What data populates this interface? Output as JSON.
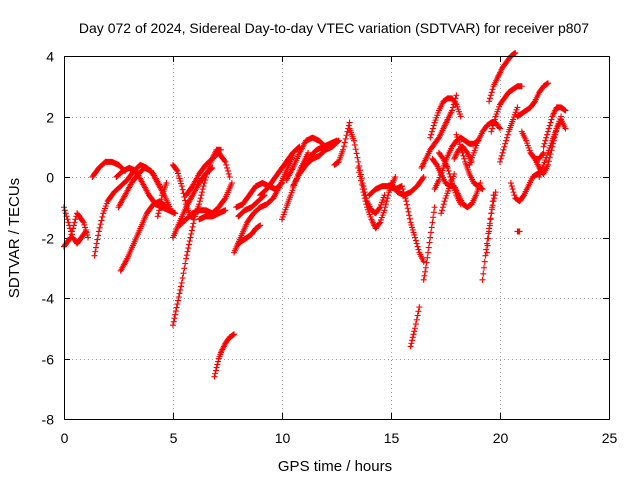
{
  "chart_data": {
    "type": "scatter",
    "title": "Day 072 of 2024, Sidereal Day-to-day VTEC variation (SDTVAR) for receiver p807",
    "xlabel": "GPS time / hours",
    "ylabel": "SDTVAR / TECUs",
    "xlim": [
      0,
      25
    ],
    "ylim": [
      -8,
      4
    ],
    "xticks": [
      "0",
      "5",
      "10",
      "15",
      "20",
      "25"
    ],
    "yticks": [
      "-8",
      "-6",
      "-4",
      "-2",
      "0",
      "2",
      "4"
    ],
    "grid": true,
    "marker": "+",
    "color": "#ff0000",
    "series": [
      {
        "name": "s01",
        "x": [
          0.0,
          0.2,
          0.4,
          0.6,
          0.8,
          1.0
        ],
        "y": [
          -1.0,
          -1.5,
          -2.0,
          -2.2,
          -2.0,
          -1.8
        ]
      },
      {
        "name": "s02",
        "x": [
          0.0,
          0.3,
          0.6,
          0.9,
          1.1
        ],
        "y": [
          -2.3,
          -2.0,
          -1.2,
          -1.5,
          -2.0
        ]
      },
      {
        "name": "s03",
        "x": [
          1.3,
          1.6,
          1.9,
          2.2,
          2.5,
          2.8
        ],
        "y": [
          0.0,
          0.3,
          0.5,
          0.5,
          0.4,
          0.2
        ]
      },
      {
        "name": "s04",
        "x": [
          1.4,
          1.6,
          1.8,
          2.0,
          2.3,
          2.6,
          2.9,
          3.2,
          3.5,
          3.8,
          4.1,
          4.4
        ],
        "y": [
          -2.6,
          -1.8,
          -1.2,
          -0.8,
          -0.5,
          -0.3,
          -0.1,
          0.2,
          0.4,
          0.3,
          0.1,
          -0.3
        ]
      },
      {
        "name": "s05",
        "x": [
          2.5,
          2.8,
          3.1,
          3.4,
          3.7,
          4.0,
          4.3,
          4.6,
          4.9
        ],
        "y": [
          -1.0,
          -0.6,
          -0.2,
          0.1,
          0.3,
          0.2,
          -0.2,
          -0.6,
          -1.1
        ]
      },
      {
        "name": "s06",
        "x": [
          2.6,
          2.9,
          3.2,
          3.5,
          3.8,
          4.1,
          4.4,
          4.7
        ],
        "y": [
          -3.1,
          -2.7,
          -2.2,
          -1.7,
          -1.2,
          -0.9,
          -0.8,
          -1.0
        ]
      },
      {
        "name": "s07",
        "x": [
          2.4,
          2.7,
          3.0,
          3.3,
          3.6,
          3.9,
          4.2,
          4.5,
          4.8,
          5.1
        ],
        "y": [
          0.0,
          0.2,
          0.3,
          0.2,
          -0.2,
          -0.6,
          -0.9,
          -1.0,
          -1.1,
          -1.2
        ]
      },
      {
        "name": "s08",
        "x": [
          4.3,
          4.4,
          4.5,
          4.7
        ],
        "y": [
          -1.3,
          -1.0,
          -0.6,
          -0.2
        ]
      },
      {
        "name": "s09",
        "x": [
          5.0,
          5.2,
          5.4,
          5.6,
          5.8,
          6.0,
          6.2,
          6.4,
          6.6,
          6.8,
          7.0,
          7.2
        ],
        "y": [
          0.4,
          0.2,
          -0.3,
          -0.9,
          -1.3,
          -1.3,
          -0.9,
          -0.3,
          0.2,
          0.6,
          0.9,
          0.9
        ]
      },
      {
        "name": "s10",
        "x": [
          5.0,
          5.2,
          5.4,
          5.6,
          5.8,
          6.0
        ],
        "y": [
          -4.9,
          -4.2,
          -3.5,
          -2.7,
          -2.0,
          -1.3
        ]
      },
      {
        "name": "s11",
        "x": [
          5.6,
          5.9,
          6.2,
          6.5,
          6.8,
          7.1,
          7.4,
          7.6
        ],
        "y": [
          -0.6,
          -0.3,
          0.1,
          0.4,
          0.6,
          0.8,
          0.5,
          0.0
        ]
      },
      {
        "name": "s12",
        "x": [
          5.3,
          5.6,
          5.9,
          6.2,
          6.5,
          6.8,
          7.1,
          7.4,
          7.7
        ],
        "y": [
          -1.6,
          -1.4,
          -1.2,
          -1.1,
          -1.1,
          -1.2,
          -1.0,
          -0.7,
          -0.2
        ]
      },
      {
        "name": "s13",
        "x": [
          5.0,
          5.3,
          5.6,
          5.9,
          6.2,
          6.5,
          6.8
        ],
        "y": [
          -2.0,
          -1.5,
          -1.0,
          -0.6,
          -0.2,
          0.1,
          0.3
        ]
      },
      {
        "name": "s14",
        "x": [
          6.2,
          6.5,
          6.8,
          7.1,
          7.4
        ],
        "y": [
          -1.4,
          -1.3,
          -1.3,
          -1.2,
          -1.1
        ]
      },
      {
        "name": "s15",
        "x": [
          6.9,
          7.0,
          7.1,
          7.2,
          7.4,
          7.6,
          7.8
        ],
        "y": [
          -6.6,
          -6.3,
          -6.0,
          -5.8,
          -5.5,
          -5.3,
          -5.2
        ]
      },
      {
        "name": "s16",
        "x": [
          7.9,
          8.2,
          8.5,
          8.8,
          9.1,
          9.4,
          9.7,
          10.0
        ],
        "y": [
          -1.0,
          -0.9,
          -0.6,
          -0.3,
          -0.2,
          -0.3,
          -0.4,
          -0.2
        ]
      },
      {
        "name": "s17",
        "x": [
          7.8,
          8.1,
          8.4,
          8.7,
          9.0,
          9.3,
          9.6,
          9.9,
          10.2,
          10.5
        ],
        "y": [
          -2.5,
          -2.0,
          -1.5,
          -1.2,
          -1.0,
          -0.9,
          -0.7,
          -0.3,
          0.2,
          0.7
        ]
      },
      {
        "name": "s18",
        "x": [
          8.0,
          8.3,
          8.6,
          8.9,
          9.2
        ],
        "y": [
          -1.3,
          -1.1,
          -1.0,
          -0.8,
          -0.6
        ]
      },
      {
        "name": "s19",
        "x": [
          8.0,
          8.2,
          8.4,
          8.6,
          8.8,
          9.0
        ],
        "y": [
          -2.2,
          -2.1,
          -2.0,
          -1.9,
          -1.7,
          -1.6
        ]
      },
      {
        "name": "s20",
        "x": [
          9.0,
          9.3,
          9.6,
          9.9,
          10.2,
          10.5,
          10.8
        ],
        "y": [
          -0.6,
          -0.4,
          -0.1,
          0.2,
          0.5,
          0.8,
          1.0
        ]
      },
      {
        "name": "s21",
        "x": [
          10.0,
          10.2,
          10.4,
          10.6,
          10.8,
          11.0,
          11.2
        ],
        "y": [
          -1.4,
          -1.0,
          -0.6,
          -0.2,
          0.2,
          0.5,
          0.8
        ]
      },
      {
        "name": "s22",
        "x": [
          10.2,
          10.5,
          10.8,
          11.1,
          11.4,
          11.7,
          12.0,
          12.3,
          12.6
        ],
        "y": [
          -0.1,
          0.3,
          0.8,
          1.2,
          1.3,
          1.2,
          1.0,
          1.1,
          1.2
        ]
      },
      {
        "name": "s23",
        "x": [
          10.5,
          10.8,
          11.1,
          11.4,
          11.7,
          12.0,
          12.3,
          12.6
        ],
        "y": [
          -0.3,
          0.1,
          0.4,
          0.6,
          0.7,
          0.9,
          1.0,
          1.2
        ]
      },
      {
        "name": "s24",
        "x": [
          11.0,
          11.3,
          11.6,
          11.9,
          12.2,
          12.5
        ],
        "y": [
          0.4,
          0.7,
          0.9,
          1.0,
          1.1,
          1.2
        ]
      },
      {
        "name": "s25",
        "x": [
          12.4,
          12.6,
          12.8,
          13.0,
          13.1
        ],
        "y": [
          0.4,
          0.5,
          0.9,
          1.5,
          1.8
        ]
      },
      {
        "name": "s26",
        "x": [
          13.1,
          13.3,
          13.5,
          13.7,
          13.9,
          14.1,
          14.3,
          14.5,
          14.7
        ],
        "y": [
          1.6,
          1.2,
          0.5,
          -0.2,
          -0.8,
          -1.1,
          -1.2,
          -1.0,
          -0.6
        ]
      },
      {
        "name": "s27",
        "x": [
          13.5,
          13.7,
          13.9,
          14.1,
          14.3,
          14.5,
          14.7,
          14.9,
          15.2
        ],
        "y": [
          0.3,
          -0.4,
          -1.0,
          -1.4,
          -1.7,
          -1.5,
          -1.1,
          -0.5,
          0.0
        ]
      },
      {
        "name": "s28",
        "x": [
          14.0,
          14.3,
          14.6,
          14.9,
          15.2,
          15.5
        ],
        "y": [
          -0.6,
          -0.4,
          -0.3,
          -0.3,
          -0.4,
          -0.3
        ]
      },
      {
        "name": "s29",
        "x": [
          15.0,
          15.3,
          15.6,
          15.9,
          16.2,
          16.5
        ],
        "y": [
          -0.2,
          -0.5,
          -0.6,
          -0.5,
          -0.3,
          0.0
        ]
      },
      {
        "name": "s30",
        "x": [
          15.5,
          15.7,
          15.9,
          16.1,
          16.3,
          16.5
        ],
        "y": [
          -0.3,
          -0.8,
          -1.5,
          -2.0,
          -2.5,
          -2.8
        ]
      },
      {
        "name": "s31",
        "x": [
          15.9,
          16.1,
          16.3
        ],
        "y": [
          -5.6,
          -5.0,
          -4.3
        ]
      },
      {
        "name": "s32",
        "x": [
          16.4,
          16.6,
          16.8,
          17.0,
          17.2,
          17.4,
          17.6,
          17.8,
          18.0
        ],
        "y": [
          0.3,
          0.6,
          0.9,
          1.1,
          1.3,
          1.6,
          1.9,
          2.2,
          2.7
        ]
      },
      {
        "name": "s33",
        "x": [
          16.5,
          16.6,
          16.7,
          16.8,
          16.9,
          17.0
        ],
        "y": [
          -3.4,
          -3.0,
          -2.5,
          -2.0,
          -1.5,
          -1.0
        ]
      },
      {
        "name": "s34",
        "x": [
          16.8,
          17.0,
          17.2,
          17.4,
          17.6,
          17.8,
          18.0,
          18.2
        ],
        "y": [
          1.3,
          1.8,
          2.2,
          2.5,
          2.6,
          2.6,
          2.4,
          2.0
        ]
      },
      {
        "name": "s35",
        "x": [
          17.0,
          17.2,
          17.4,
          17.6,
          17.8,
          18.0,
          18.2,
          18.4,
          18.6,
          18.8,
          19.0
        ],
        "y": [
          -0.4,
          -0.1,
          0.3,
          0.7,
          1.0,
          1.2,
          1.3,
          1.2,
          1.1,
          1.1,
          1.2
        ]
      },
      {
        "name": "s36",
        "x": [
          16.9,
          17.1,
          17.3,
          17.5,
          17.7,
          17.9,
          18.1,
          18.3,
          18.5,
          18.7,
          18.9,
          19.1
        ],
        "y": [
          0.6,
          0.4,
          0.1,
          -0.2,
          -0.3,
          -0.3,
          -0.6,
          -0.9,
          -1.0,
          -0.9,
          -0.6,
          -0.2
        ]
      },
      {
        "name": "s37",
        "x": [
          17.2,
          17.4,
          17.6,
          17.8,
          18.0,
          18.2
        ],
        "y": [
          0.8,
          0.6,
          0.3,
          -0.2,
          -0.6,
          -0.9
        ]
      },
      {
        "name": "s38",
        "x": [
          17.3,
          17.5,
          17.7,
          17.9
        ],
        "y": [
          -1.2,
          -0.7,
          -0.3,
          0.1
        ]
      },
      {
        "name": "s39",
        "x": [
          17.9,
          18.1,
          18.3,
          18.5,
          18.7
        ],
        "y": [
          0.6,
          0.9,
          1.0,
          0.8,
          0.5
        ]
      },
      {
        "name": "s40",
        "x": [
          18.6,
          18.8,
          19.0,
          19.2,
          19.4,
          19.6,
          19.8,
          20.0
        ],
        "y": [
          0.4,
          0.8,
          1.2,
          1.5,
          1.7,
          1.8,
          1.8,
          1.6
        ]
      },
      {
        "name": "s41",
        "x": [
          18.0,
          18.2,
          18.4,
          18.6,
          18.8,
          19.0,
          19.2
        ],
        "y": [
          1.4,
          1.0,
          0.5,
          0.1,
          -0.2,
          -0.3,
          -0.4
        ]
      },
      {
        "name": "s42",
        "x": [
          19.2,
          19.3,
          19.4,
          19.5,
          19.6,
          19.7,
          19.8
        ],
        "y": [
          -3.4,
          -2.8,
          -2.2,
          -1.7,
          -1.2,
          -0.8,
          -0.5
        ]
      },
      {
        "name": "s43",
        "x": [
          19.4,
          19.5,
          19.6,
          19.7
        ],
        "y": [
          -2.5,
          -1.8,
          -1.2,
          -0.6
        ]
      },
      {
        "name": "s44",
        "x": [
          19.5,
          19.7,
          19.9,
          20.1,
          20.3,
          20.5,
          20.7
        ],
        "y": [
          2.5,
          3.0,
          3.3,
          3.6,
          3.8,
          4.0,
          4.1
        ]
      },
      {
        "name": "s45",
        "x": [
          19.6,
          19.8,
          20.0,
          20.2,
          20.4,
          20.6,
          20.8,
          21.0
        ],
        "y": [
          1.5,
          2.0,
          2.4,
          2.6,
          2.8,
          2.9,
          3.0,
          3.0
        ]
      },
      {
        "name": "s46",
        "x": [
          20.0,
          20.2,
          20.4,
          20.6,
          20.8
        ],
        "y": [
          0.5,
          1.0,
          1.5,
          1.9,
          2.3
        ]
      },
      {
        "name": "s47",
        "x": [
          20.5,
          20.7,
          20.9,
          21.1,
          21.3,
          21.5,
          21.7,
          21.9
        ],
        "y": [
          -0.2,
          -0.7,
          -0.8,
          -0.6,
          -0.3,
          0.0,
          0.1,
          0.2
        ]
      },
      {
        "name": "s48",
        "x": [
          20.8,
          20.9
        ],
        "y": [
          -1.8,
          -1.8
        ]
      },
      {
        "name": "s49",
        "x": [
          20.8,
          21.0,
          21.2,
          21.4,
          21.6,
          21.8,
          22.0,
          22.2
        ],
        "y": [
          2.0,
          2.1,
          2.2,
          2.3,
          2.5,
          2.8,
          3.0,
          3.1
        ]
      },
      {
        "name": "s50",
        "x": [
          21.0,
          21.2,
          21.4,
          21.6,
          21.8,
          22.0
        ],
        "y": [
          1.5,
          1.2,
          0.8,
          0.6,
          0.6,
          0.8
        ]
      },
      {
        "name": "s51",
        "x": [
          21.6,
          21.8,
          22.0,
          22.2,
          22.4,
          22.6,
          22.8
        ],
        "y": [
          0.6,
          0.3,
          0.1,
          0.4,
          1.0,
          1.6,
          2.0
        ]
      },
      {
        "name": "s52",
        "x": [
          22.0,
          22.2,
          22.4,
          22.6,
          22.8,
          23.0
        ],
        "y": [
          1.0,
          1.5,
          2.0,
          2.3,
          2.3,
          2.2
        ]
      },
      {
        "name": "s53",
        "x": [
          21.8,
          22.0,
          22.2,
          22.4,
          22.6,
          22.8,
          23.0
        ],
        "y": [
          0.0,
          0.4,
          0.8,
          1.2,
          1.6,
          1.9,
          1.6
        ]
      }
    ]
  }
}
